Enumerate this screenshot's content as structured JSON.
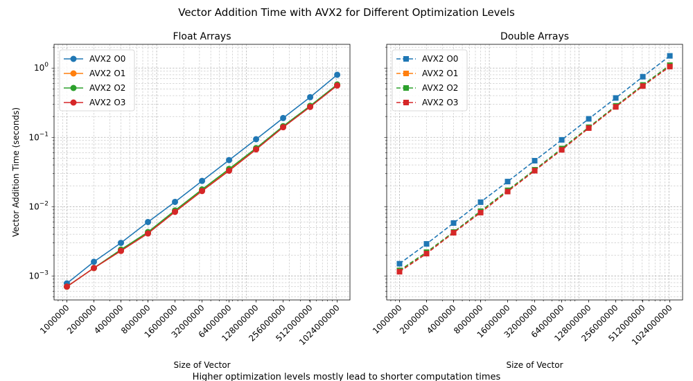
{
  "suptitle": "Vector Addition Time with AVX2 for Different Optimization Levels",
  "caption": "Higher optimization levels mostly lead to shorter computation times",
  "colors": {
    "O0": "#1f77b4",
    "O1": "#ff7f0e",
    "O2": "#2ca02c",
    "O3": "#d62728"
  },
  "chart_data": [
    {
      "type": "line",
      "title": "Float Arrays",
      "xlabel": "Size of Vector",
      "ylabel": "Vector Addition Time (seconds)",
      "xscale": "log",
      "yscale": "log",
      "x": [
        1000000,
        2000000,
        4000000,
        8000000,
        16000000,
        32000000,
        64000000,
        128000000,
        256000000,
        512000000,
        1024000000
      ],
      "x_tick_labels": [
        "1000000",
        "2000000",
        "4000000",
        "8000000",
        "16000000",
        "32000000",
        "64000000",
        "128000000",
        "256000000",
        "512000000",
        "1024000000"
      ],
      "y_tick_labels": [
        "10^-3",
        "10^-2",
        "10^-1",
        "10^0"
      ],
      "ylim": [
        0.00045,
        2.2
      ],
      "grid": true,
      "legend": "upper-left",
      "marker": "circle",
      "linestyle": "solid",
      "series": [
        {
          "name": "AVX2 O0",
          "color": "#1f77b4",
          "values": [
            0.00078,
            0.0016,
            0.003,
            0.006,
            0.0117,
            0.0235,
            0.047,
            0.094,
            0.19,
            0.38,
            0.8
          ]
        },
        {
          "name": "AVX2 O1",
          "color": "#ff7f0e",
          "values": [
            0.0007,
            0.0013,
            0.0023,
            0.0042,
            0.0085,
            0.0172,
            0.034,
            0.068,
            0.142,
            0.28,
            0.57
          ]
        },
        {
          "name": "AVX2 O2",
          "color": "#2ca02c",
          "values": [
            0.0007,
            0.0013,
            0.0024,
            0.0043,
            0.0088,
            0.0177,
            0.035,
            0.07,
            0.145,
            0.285,
            0.58
          ]
        },
        {
          "name": "AVX2 O3",
          "color": "#d62728",
          "values": [
            0.0007,
            0.0013,
            0.0023,
            0.0041,
            0.0084,
            0.0168,
            0.033,
            0.067,
            0.14,
            0.275,
            0.56
          ]
        }
      ]
    },
    {
      "type": "line",
      "title": "Double Arrays",
      "xlabel": "Size of Vector",
      "ylabel": "",
      "xscale": "log",
      "yscale": "log",
      "x": [
        1000000,
        2000000,
        4000000,
        8000000,
        16000000,
        32000000,
        64000000,
        128000000,
        256000000,
        512000000,
        1024000000
      ],
      "x_tick_labels": [
        "1000000",
        "2000000",
        "4000000",
        "8000000",
        "16000000",
        "32000000",
        "64000000",
        "128000000",
        "256000000",
        "512000000",
        "1024000000"
      ],
      "ylim": [
        0.00045,
        2.2
      ],
      "grid": true,
      "legend": "upper-left",
      "marker": "square",
      "linestyle": "dashed",
      "series": [
        {
          "name": "AVX2 O0",
          "color": "#1f77b4",
          "values": [
            0.0015,
            0.0029,
            0.0058,
            0.0116,
            0.023,
            0.046,
            0.092,
            0.185,
            0.37,
            0.75,
            1.5
          ]
        },
        {
          "name": "AVX2 O1",
          "color": "#ff7f0e",
          "values": [
            0.0012,
            0.0022,
            0.0043,
            0.0085,
            0.017,
            0.034,
            0.068,
            0.138,
            0.28,
            0.56,
            1.1
          ]
        },
        {
          "name": "AVX2 O2",
          "color": "#2ca02c",
          "values": [
            0.0012,
            0.0022,
            0.0043,
            0.0086,
            0.0172,
            0.034,
            0.069,
            0.14,
            0.285,
            0.57,
            1.1
          ]
        },
        {
          "name": "AVX2 O3",
          "color": "#d62728",
          "values": [
            0.00115,
            0.0021,
            0.0042,
            0.0082,
            0.0165,
            0.033,
            0.066,
            0.136,
            0.275,
            0.55,
            1.05
          ]
        }
      ]
    }
  ]
}
